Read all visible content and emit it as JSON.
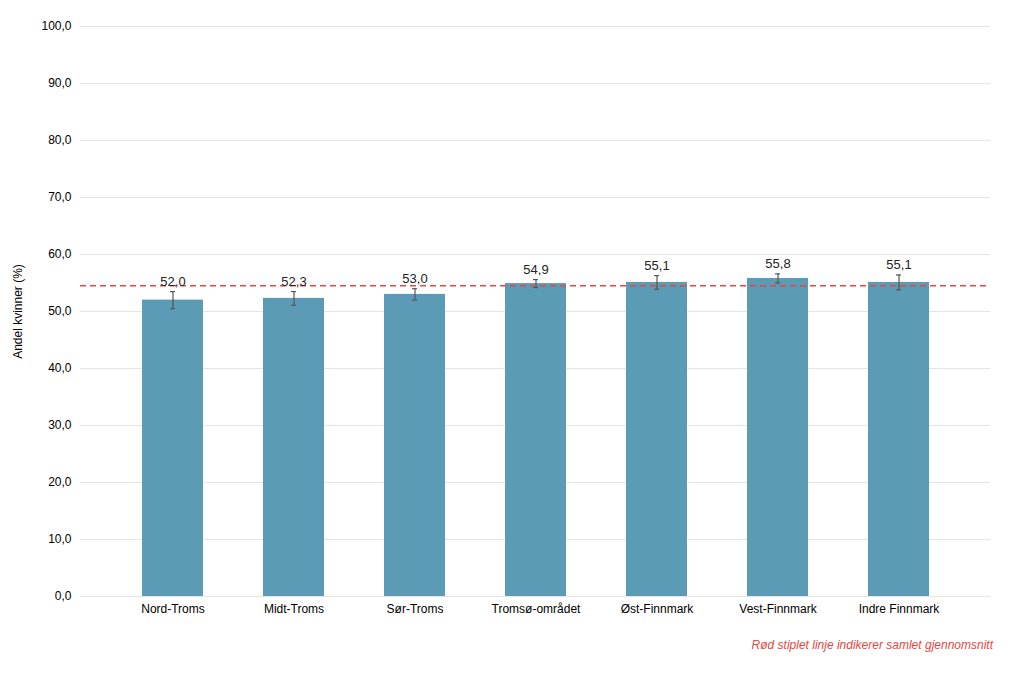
{
  "chart_data": {
    "type": "bar",
    "categories": [
      "Nord-Troms",
      "Midt-Troms",
      "Sør-Troms",
      "Tromsø-området",
      "Øst-Finnmark",
      "Vest-Finnmark",
      "Indre Finnmark"
    ],
    "values": [
      52.0,
      52.3,
      53.0,
      54.9,
      55.1,
      55.8,
      55.1
    ],
    "value_labels": [
      "52,0",
      "52,3",
      "53,0",
      "54,9",
      "55,1",
      "55,8",
      "55,1"
    ],
    "errors": [
      1.5,
      1.2,
      1.0,
      0.7,
      1.2,
      0.8,
      1.3
    ],
    "color": "#5b9bb5",
    "data_labels": true,
    "reference_line": {
      "value": 54.5,
      "color": "#e8473f",
      "line_style": "dashed"
    },
    "ylabel": "Andel kvinner (%)",
    "ylim": [
      0,
      100
    ],
    "yticks": [
      {
        "value": 0,
        "label": "0,0"
      },
      {
        "value": 10,
        "label": "10,0"
      },
      {
        "value": 20,
        "label": "20,0"
      },
      {
        "value": 30,
        "label": "30,0"
      },
      {
        "value": 40,
        "label": "40,0"
      },
      {
        "value": 50,
        "label": "50,0"
      },
      {
        "value": 60,
        "label": "60,0"
      },
      {
        "value": 70,
        "label": "70,0"
      },
      {
        "value": 80,
        "label": "80,0"
      },
      {
        "value": 90,
        "label": "90,0"
      },
      {
        "value": 100,
        "label": "100,0"
      }
    ],
    "grid": true,
    "annotations": [
      {
        "text": "Rød stiplet linje indikerer samlet gjennomsnitt",
        "color": "#e8473f"
      }
    ]
  }
}
